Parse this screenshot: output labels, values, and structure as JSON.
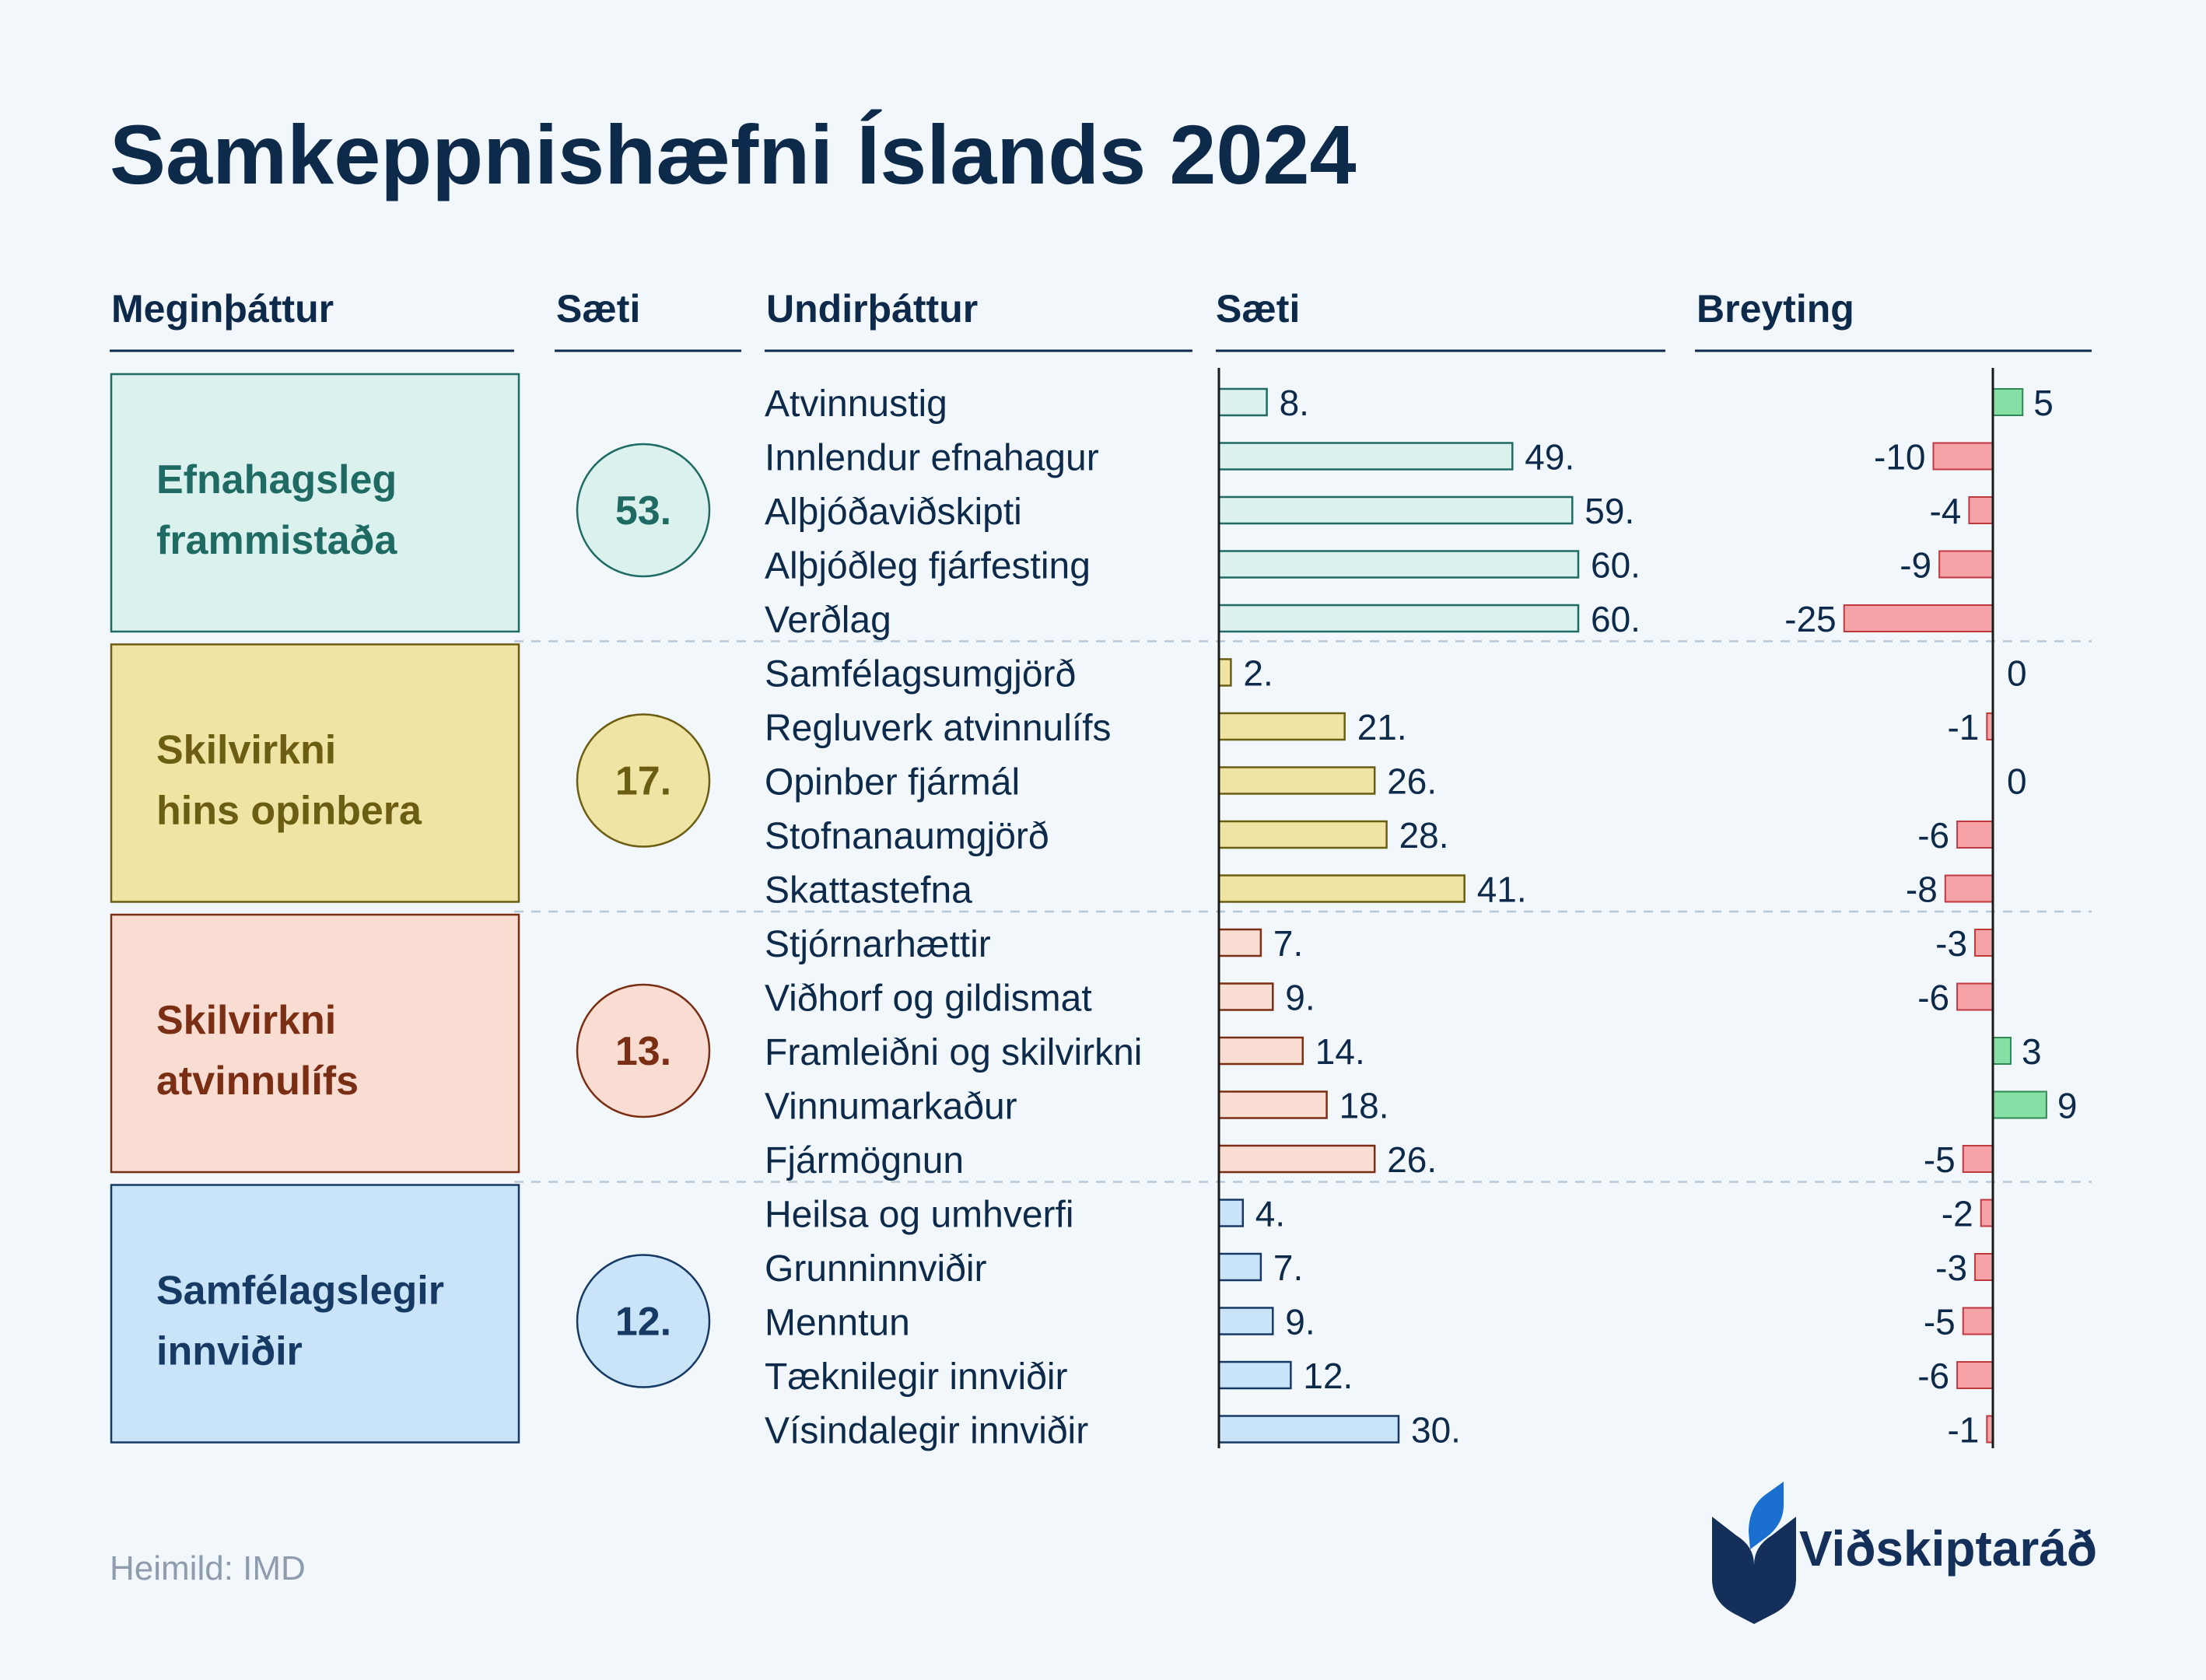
{
  "title": "Samkeppnishæfni Íslands 2024",
  "headers": {
    "main_factor": "Meginþáttur",
    "main_rank": "Sæti",
    "sub_factor": "Undirþáttur",
    "sub_rank": "Sæti",
    "change": "Breyting"
  },
  "source": "Heimild: IMD",
  "logo": {
    "name": "Viðskiptaráð",
    "colors": [
      "#14305a",
      "#1b6fd1"
    ]
  },
  "colors": {
    "text": "#0e2a4a",
    "positive_fill": "#86e0a6",
    "positive_stroke": "#2e8a52",
    "negative_fill": "#f5a3a6",
    "negative_stroke": "#c0393f",
    "divider": "#b9c8d6"
  },
  "chart_data": {
    "type": "bar",
    "title": "Samkeppnishæfni Íslands 2024",
    "groups": [
      {
        "name": "Efnahagsleg frammistaða",
        "name_lines": [
          "Efnahagsleg",
          "frammistaða"
        ],
        "rank": "53.",
        "colors": {
          "fill": "#dbf1ee",
          "stroke": "#1f6b63",
          "text": "#1f6b63"
        },
        "items": [
          {
            "label": "Atvinnustig",
            "rank": 8,
            "rank_label": "8.",
            "change": 5,
            "change_label": "5"
          },
          {
            "label": "Innlendur efnahagur",
            "rank": 49,
            "rank_label": "49.",
            "change": -10,
            "change_label": "-10"
          },
          {
            "label": "Alþjóðaviðskipti",
            "rank": 59,
            "rank_label": "59.",
            "change": -4,
            "change_label": "-4"
          },
          {
            "label": "Alþjóðleg fjárfesting",
            "rank": 60,
            "rank_label": "60.",
            "change": -9,
            "change_label": "-9"
          },
          {
            "label": "Verðlag",
            "rank": 60,
            "rank_label": "60.",
            "change": -25,
            "change_label": "-25"
          }
        ]
      },
      {
        "name": "Skilvirkni hins opinbera",
        "name_lines": [
          "Skilvirkni",
          "hins opinbera"
        ],
        "rank": "17.",
        "colors": {
          "fill": "#f0e4a4",
          "stroke": "#6b5e12",
          "text": "#6b5e12"
        },
        "items": [
          {
            "label": "Samfélagsumgjörð",
            "rank": 2,
            "rank_label": "2.",
            "change": 0,
            "change_label": "0"
          },
          {
            "label": "Regluverk atvinnulífs",
            "rank": 21,
            "rank_label": "21.",
            "change": -1,
            "change_label": "-1"
          },
          {
            "label": "Opinber fjármál",
            "rank": 26,
            "rank_label": "26.",
            "change": 0,
            "change_label": "0"
          },
          {
            "label": "Stofnanaumgjörð",
            "rank": 28,
            "rank_label": "28.",
            "change": -6,
            "change_label": "-6"
          },
          {
            "label": "Skattastefna",
            "rank": 41,
            "rank_label": "41.",
            "change": -8,
            "change_label": "-8"
          }
        ]
      },
      {
        "name": "Skilvirkni atvinnulífs",
        "name_lines": [
          "Skilvirkni",
          "atvinnulífs"
        ],
        "rank": "13.",
        "colors": {
          "fill": "#f9ddd2",
          "stroke": "#7a2e14",
          "text": "#7a2e14"
        },
        "items": [
          {
            "label": "Stjórnarhættir",
            "rank": 7,
            "rank_label": "7.",
            "change": -3,
            "change_label": "-3"
          },
          {
            "label": "Viðhorf og gildismat",
            "rank": 9,
            "rank_label": "9.",
            "change": -6,
            "change_label": "-6"
          },
          {
            "label": "Framleiðni og skilvirkni",
            "rank": 14,
            "rank_label": "14.",
            "change": 3,
            "change_label": "3"
          },
          {
            "label": "Vinnumarkaður",
            "rank": 18,
            "rank_label": "18.",
            "change": 9,
            "change_label": "9"
          },
          {
            "label": "Fjármögnun",
            "rank": 26,
            "rank_label": "26.",
            "change": -5,
            "change_label": "-5"
          }
        ]
      },
      {
        "name": "Samfélagslegir innviðir",
        "name_lines": [
          "Samfélagslegir",
          "innviðir"
        ],
        "rank": "12.",
        "colors": {
          "fill": "#c9e3f8",
          "stroke": "#163a64",
          "text": "#163a64"
        },
        "items": [
          {
            "label": "Heilsa og umhverfi",
            "rank": 4,
            "rank_label": "4.",
            "change": -2,
            "change_label": "-2"
          },
          {
            "label": "Grunninnviðir",
            "rank": 7,
            "rank_label": "7.",
            "change": -3,
            "change_label": "-3"
          },
          {
            "label": "Menntun",
            "rank": 9,
            "rank_label": "9.",
            "change": -5,
            "change_label": "-5"
          },
          {
            "label": "Tæknilegir innviðir",
            "rank": 12,
            "rank_label": "12.",
            "change": -6,
            "change_label": "-6"
          },
          {
            "label": "Vísindalegir innviðir",
            "rank": 30,
            "rank_label": "30.",
            "change": -1,
            "change_label": "-1"
          }
        ]
      }
    ]
  }
}
